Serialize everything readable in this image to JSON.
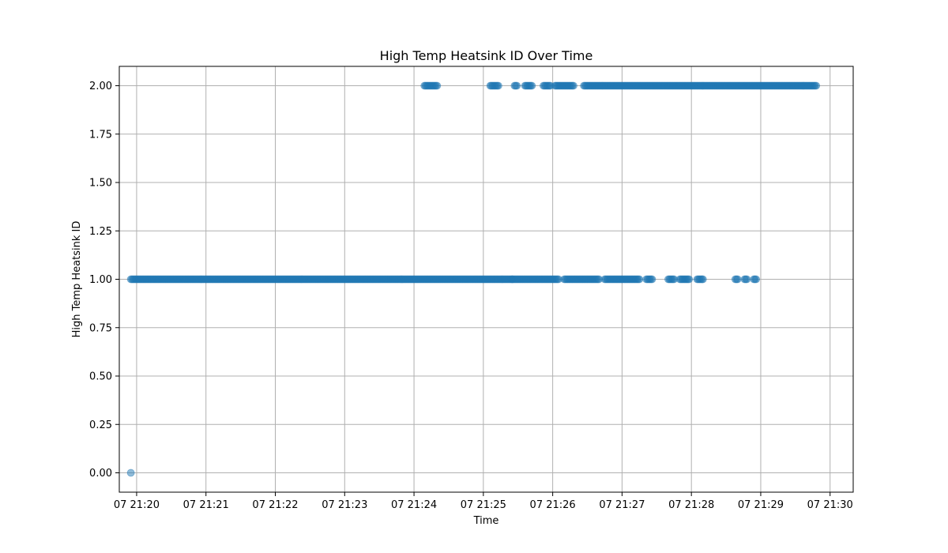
{
  "chart_data": {
    "type": "scatter",
    "title": "High Temp Heatsink ID Over Time",
    "xlabel": "Time",
    "ylabel": "High Temp Heatsink ID",
    "xlim": [
      "07 21:19:45",
      "07 21:30:20"
    ],
    "ylim": [
      -0.1,
      2.1
    ],
    "x_ticks": [
      "07 21:20",
      "07 21:21",
      "07 21:22",
      "07 21:23",
      "07 21:24",
      "07 21:25",
      "07 21:26",
      "07 21:27",
      "07 21:28",
      "07 21:29",
      "07 21:30"
    ],
    "y_ticks": [
      "0.00",
      "0.25",
      "0.50",
      "0.75",
      "1.00",
      "1.25",
      "1.50",
      "1.75",
      "2.00"
    ],
    "grid": true,
    "marker_color": "#1f77b4",
    "marker_opacity": 0.5,
    "series": [
      {
        "name": "",
        "segments": [
          {
            "y": 0,
            "x_start": "07 21:19:55",
            "x_end": "07 21:19:55"
          },
          {
            "y": 1,
            "x_start": "07 21:19:55",
            "x_end": "07 21:25:25"
          },
          {
            "y": 1,
            "x_start": "07 21:25:25",
            "x_end": "07 21:26:05"
          },
          {
            "y": 1,
            "x_start": "07 21:26:10",
            "x_end": "07 21:26:40"
          },
          {
            "y": 1,
            "x_start": "07 21:26:45",
            "x_end": "07 21:27:15"
          },
          {
            "y": 1,
            "x_start": "07 21:27:21",
            "x_end": "07 21:27:26"
          },
          {
            "y": 1,
            "x_start": "07 21:27:40",
            "x_end": "07 21:27:45"
          },
          {
            "y": 1,
            "x_start": "07 21:27:50",
            "x_end": "07 21:27:58"
          },
          {
            "y": 1,
            "x_start": "07 21:28:05",
            "x_end": "07 21:28:10"
          },
          {
            "y": 1,
            "x_start": "07 21:28:38",
            "x_end": "07 21:28:40"
          },
          {
            "y": 1,
            "x_start": "07 21:28:46",
            "x_end": "07 21:28:48"
          },
          {
            "y": 1,
            "x_start": "07 21:28:54",
            "x_end": "07 21:28:56"
          },
          {
            "y": 2,
            "x_start": "07 21:24:09",
            "x_end": "07 21:24:20"
          },
          {
            "y": 2,
            "x_start": "07 21:25:06",
            "x_end": "07 21:25:13"
          },
          {
            "y": 2,
            "x_start": "07 21:25:27",
            "x_end": "07 21:25:29"
          },
          {
            "y": 2,
            "x_start": "07 21:25:36",
            "x_end": "07 21:25:42"
          },
          {
            "y": 2,
            "x_start": "07 21:25:52",
            "x_end": "07 21:25:58"
          },
          {
            "y": 2,
            "x_start": "07 21:26:02",
            "x_end": "07 21:26:18"
          },
          {
            "y": 2,
            "x_start": "07 21:26:27",
            "x_end": "07 21:29:48"
          }
        ]
      }
    ]
  }
}
